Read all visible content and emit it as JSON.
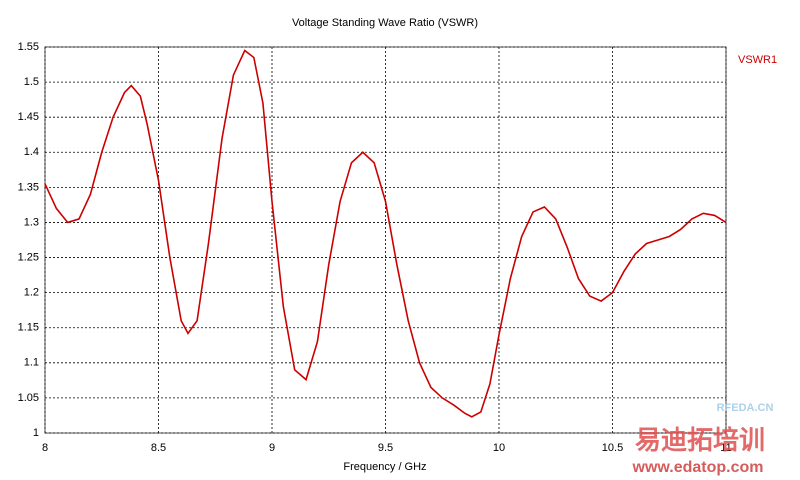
{
  "chart_data": {
    "type": "line",
    "title": "Voltage Standing Wave Ratio (VSWR)",
    "xlabel": "Frequency / GHz",
    "x": [
      8.0,
      8.05,
      8.1,
      8.15,
      8.2,
      8.25,
      8.3,
      8.35,
      8.38,
      8.42,
      8.45,
      8.5,
      8.55,
      8.6,
      8.63,
      8.67,
      8.72,
      8.78,
      8.83,
      8.88,
      8.92,
      8.96,
      9.0,
      9.05,
      9.1,
      9.15,
      9.2,
      9.25,
      9.3,
      9.35,
      9.4,
      9.45,
      9.5,
      9.55,
      9.6,
      9.65,
      9.7,
      9.75,
      9.8,
      9.85,
      9.88,
      9.92,
      9.96,
      10.0,
      10.05,
      10.1,
      10.15,
      10.2,
      10.25,
      10.3,
      10.35,
      10.4,
      10.45,
      10.5,
      10.55,
      10.6,
      10.65,
      10.7,
      10.75,
      10.8,
      10.85,
      10.9,
      10.95,
      11.0
    ],
    "series": [
      {
        "name": "VSWR1",
        "color": "#cc0000",
        "values": [
          1.355,
          1.32,
          1.3,
          1.305,
          1.34,
          1.4,
          1.45,
          1.485,
          1.495,
          1.48,
          1.44,
          1.36,
          1.25,
          1.16,
          1.142,
          1.16,
          1.27,
          1.42,
          1.51,
          1.545,
          1.535,
          1.47,
          1.33,
          1.18,
          1.09,
          1.076,
          1.13,
          1.24,
          1.33,
          1.385,
          1.4,
          1.385,
          1.33,
          1.24,
          1.16,
          1.1,
          1.065,
          1.05,
          1.04,
          1.028,
          1.023,
          1.03,
          1.07,
          1.14,
          1.22,
          1.28,
          1.315,
          1.322,
          1.305,
          1.265,
          1.22,
          1.195,
          1.188,
          1.2,
          1.23,
          1.255,
          1.27,
          1.275,
          1.28,
          1.29,
          1.305,
          1.313,
          1.31,
          1.3
        ]
      }
    ],
    "xlim": [
      8,
      11
    ],
    "xticks": [
      8,
      8.5,
      9,
      9.5,
      10,
      10.5,
      11
    ],
    "ylim": [
      1,
      1.55
    ],
    "yticks": [
      1,
      1.05,
      1.1,
      1.15,
      1.2,
      1.25,
      1.3,
      1.35,
      1.4,
      1.45,
      1.5,
      1.55
    ],
    "grid": true,
    "legend": "right",
    "watermark": [
      "RFEDA.CN",
      "易迪拓培训",
      "www.edatop.com"
    ]
  }
}
